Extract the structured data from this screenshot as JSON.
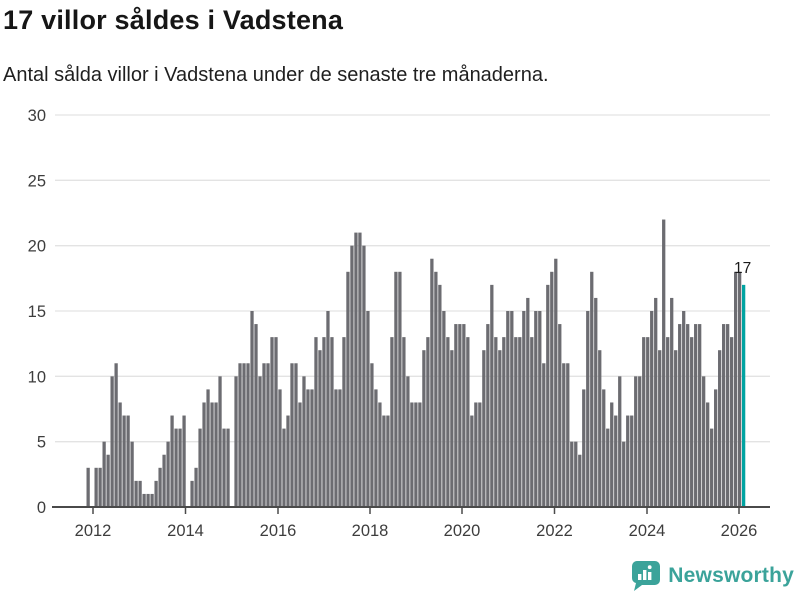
{
  "header": {
    "title": "17 villor såldes i Vadstena",
    "subtitle": "Antal sålda villor i Vadstena under de senaste tre månaderna."
  },
  "chart_data": {
    "type": "bar",
    "title": "17 villor såldes i Vadstena",
    "subtitle": "Antal sålda villor i Vadstena under de senaste tre månaderna.",
    "unit": "villor (3-månaders antal)",
    "x_start": "2011-12",
    "interval": "monthly",
    "x_tick_labels": [
      "2012",
      "2014",
      "2016",
      "2018",
      "2020",
      "2022",
      "2024",
      "2026"
    ],
    "y_ticks": [
      0,
      5,
      10,
      15,
      20,
      25,
      30
    ],
    "ylim": [
      0,
      30
    ],
    "grid": true,
    "legend": "none",
    "bar_color": "#6c6c71",
    "highlight_color": "#00a3a1",
    "values": [
      3,
      0,
      3,
      3,
      5,
      4,
      10,
      11,
      8,
      7,
      7,
      5,
      2,
      2,
      1,
      1,
      1,
      2,
      3,
      4,
      5,
      7,
      6,
      6,
      7,
      0,
      2,
      3,
      6,
      8,
      9,
      8,
      8,
      10,
      6,
      6,
      0,
      10,
      11,
      11,
      11,
      15,
      14,
      10,
      11,
      11,
      13,
      13,
      9,
      6,
      7,
      11,
      11,
      8,
      10,
      9,
      9,
      13,
      12,
      13,
      15,
      13,
      9,
      9,
      13,
      18,
      20,
      21,
      21,
      20,
      15,
      11,
      9,
      8,
      7,
      7,
      13,
      18,
      18,
      13,
      10,
      8,
      8,
      8,
      12,
      13,
      19,
      18,
      17,
      15,
      13,
      12,
      14,
      14,
      14,
      13,
      7,
      8,
      8,
      12,
      14,
      17,
      13,
      12,
      13,
      15,
      15,
      13,
      13,
      15,
      16,
      13,
      15,
      15,
      11,
      17,
      18,
      19,
      14,
      11,
      11,
      5,
      5,
      4,
      9,
      15,
      18,
      16,
      12,
      9,
      6,
      8,
      7,
      10,
      5,
      7,
      7,
      10,
      10,
      13,
      13,
      15,
      16,
      12,
      22,
      13,
      16,
      12,
      14,
      15,
      14,
      13,
      14,
      14,
      10,
      8,
      6,
      9,
      12,
      14,
      14,
      13,
      18,
      18,
      17
    ],
    "highlight": {
      "index_from_end": 1,
      "value": 17,
      "label": "17"
    }
  },
  "branding": {
    "logo_text": "Newsworthy",
    "logo_color": "#3ba39a"
  }
}
